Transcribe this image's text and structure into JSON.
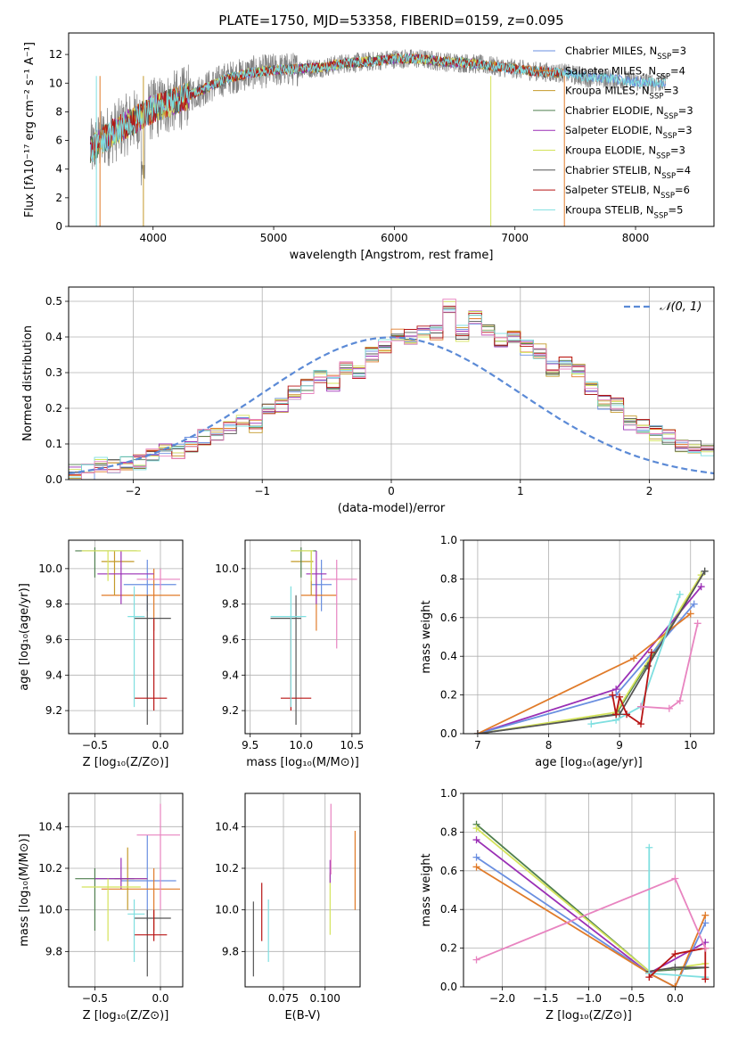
{
  "colors": {
    "chabrier_miles": "#6a8fe0",
    "salpeter_miles": "#e07b2a",
    "kroupa_miles": "#c49a2a",
    "chabrier_elodie": "#4f7f4f",
    "salpeter_elodie": "#9a2fb5",
    "kroupa_elodie": "#d4e35a",
    "chabrier_stelib": "#555555",
    "salpeter_stelib": "#b81414",
    "kroupa_stelib": "#7fdfe0",
    "pink": "#e884c0",
    "data": "#808080",
    "normal": "#5b8ad6",
    "grid": "#b0b0b0"
  },
  "chart_data": [
    {
      "type": "line",
      "title": "PLATE=1750, MJD=53358, FIBERID=0159, z=0.095",
      "xlabel": "wavelength [Angstrom, rest frame]",
      "ylabel": "Flux [fλ10⁻¹⁷ erg cm⁻² s⁻¹ A⁻¹]",
      "xlim": [
        3300,
        8650
      ],
      "ylim": [
        0,
        13.5
      ],
      "xticks": [
        4000,
        5000,
        6000,
        7000,
        8000
      ],
      "yticks": [
        0,
        2,
        4,
        6,
        8,
        10,
        12
      ],
      "grid": false,
      "legend_position": "right",
      "continuum": [
        [
          3480,
          5.3
        ],
        [
          3600,
          6.2
        ],
        [
          3800,
          7.2
        ],
        [
          4000,
          8.2
        ],
        [
          4200,
          8.8
        ],
        [
          4400,
          9.5
        ],
        [
          4600,
          10.3
        ],
        [
          4800,
          10.7
        ],
        [
          5000,
          10.9
        ],
        [
          5200,
          11.0
        ],
        [
          5400,
          11.1
        ],
        [
          5600,
          11.4
        ],
        [
          5800,
          11.5
        ],
        [
          6000,
          11.7
        ],
        [
          6200,
          11.7
        ],
        [
          6400,
          11.5
        ],
        [
          6600,
          11.4
        ],
        [
          6800,
          11.2
        ],
        [
          7000,
          11.0
        ],
        [
          7200,
          10.8
        ],
        [
          7400,
          10.7
        ],
        [
          7600,
          10.4
        ],
        [
          7800,
          10.3
        ],
        [
          8000,
          10.1
        ],
        [
          8250,
          10.0
        ]
      ],
      "series": [
        {
          "name": "Chabrier MILES, N_SSP=3",
          "label": "Chabrier MILES, N",
          "n": "=3",
          "xmax": 8250
        },
        {
          "name": "Salpeter MILES, N_SSP=4",
          "label": "Salpeter MILES, N",
          "n": "=4",
          "xmax": 7400
        },
        {
          "name": "Kroupa MILES, N_SSP=3",
          "label": "Kroupa MILES, N",
          "n": "=3",
          "xmax": 7400
        },
        {
          "name": "Chabrier ELODIE, N_SSP=3",
          "label": "Chabrier ELODIE, N",
          "n": "=3",
          "xmax": 6800
        },
        {
          "name": "Salpeter ELODIE, N_SSP=3",
          "label": "Salpeter ELODIE, N",
          "n": "=3",
          "xmax": 6800
        },
        {
          "name": "Kroupa ELODIE, N_SSP=3",
          "label": "Kroupa ELODIE, N",
          "n": "=3",
          "xmax": 6800
        },
        {
          "name": "Chabrier STELIB, N_SSP=4",
          "label": "Chabrier STELIB, N",
          "n": "=4",
          "xmax": 7400
        },
        {
          "name": "Salpeter STELIB, N_SSP=6",
          "label": "Salpeter STELIB, N",
          "n": "=6",
          "xmax": 7400
        },
        {
          "name": "Kroupa STELIB, N_SSP=5",
          "label": "Kroupa STELIB, N",
          "n": "=5",
          "xmax": 8250
        }
      ]
    },
    {
      "type": "line",
      "xlabel": "(data-model)/error",
      "ylabel": "Normed distribution",
      "xlim": [
        -2.5,
        2.5
      ],
      "ylim": [
        0,
        0.54
      ],
      "xticks": [
        -2,
        -1,
        0,
        1,
        2
      ],
      "yticks": [
        0.0,
        0.1,
        0.2,
        0.3,
        0.4,
        0.5
      ],
      "grid": true,
      "legend": "𝒩(0, 1)",
      "legend_position": "top-right",
      "hist_bin": [
        -2.5,
        0.1
      ],
      "hist_values": [
        0.02,
        0.02,
        0.04,
        0.04,
        0.05,
        0.05,
        0.07,
        0.08,
        0.08,
        0.1,
        0.12,
        0.13,
        0.15,
        0.16,
        0.15,
        0.2,
        0.21,
        0.24,
        0.26,
        0.29,
        0.27,
        0.31,
        0.3,
        0.35,
        0.37,
        0.41,
        0.4,
        0.42,
        0.41,
        0.49,
        0.41,
        0.45,
        0.42,
        0.39,
        0.4,
        0.37,
        0.36,
        0.31,
        0.33,
        0.31,
        0.26,
        0.22,
        0.21,
        0.16,
        0.15,
        0.13,
        0.12,
        0.1,
        0.09,
        0.08,
        0.06,
        0.06,
        0.05,
        0.04,
        0.04,
        0.03,
        0.03,
        0.03,
        0.02,
        0.02
      ]
    },
    {
      "type": "scatter",
      "xlabel": "Z [log₁₀(Z/Z⊙)]",
      "ylabel": "age  [log₁₀(age/yr)]",
      "xlim": [
        -0.7,
        0.17
      ],
      "ylim": [
        9.07,
        10.16
      ],
      "xticks": [
        -0.5,
        0.0
      ],
      "yticks": [
        9.2,
        9.4,
        9.6,
        9.8,
        10.0
      ],
      "points": [
        {
          "c": "chabrier_miles",
          "x": -0.1,
          "y": 9.91,
          "xe": [
            -0.28,
            0.12
          ],
          "ye": [
            9.76,
            10.05
          ]
        },
        {
          "c": "salpeter_miles",
          "x": -0.05,
          "y": 9.85,
          "xe": [
            -0.45,
            0.15
          ],
          "ye": [
            9.65,
            10.0
          ]
        },
        {
          "c": "kroupa_miles",
          "x": -0.35,
          "y": 10.04,
          "xe": [
            -0.45,
            -0.2
          ],
          "ye": [
            9.85,
            10.1
          ]
        },
        {
          "c": "chabrier_elodie",
          "x": -0.5,
          "y": 10.1,
          "xe": [
            -0.65,
            -0.18
          ],
          "ye": [
            9.95,
            10.12
          ]
        },
        {
          "c": "salpeter_elodie",
          "x": -0.3,
          "y": 9.97,
          "xe": [
            -0.48,
            -0.05
          ],
          "ye": [
            9.8,
            10.1
          ]
        },
        {
          "c": "kroupa_elodie",
          "x": -0.4,
          "y": 10.1,
          "xe": [
            -0.6,
            -0.15
          ],
          "ye": [
            9.93,
            10.1
          ]
        },
        {
          "c": "chabrier_stelib",
          "x": -0.1,
          "y": 9.72,
          "xe": [
            -0.2,
            0.08
          ],
          "ye": [
            9.12,
            9.85
          ]
        },
        {
          "c": "salpeter_stelib",
          "x": -0.05,
          "y": 9.27,
          "xe": [
            -0.2,
            0.05
          ],
          "ye": [
            9.2,
            9.72
          ]
        },
        {
          "c": "kroupa_stelib",
          "x": -0.2,
          "y": 9.73,
          "xe": [
            -0.25,
            -0.12
          ],
          "ye": [
            9.22,
            9.9
          ]
        },
        {
          "c": "pink",
          "x": 0.0,
          "y": 9.94,
          "xe": [
            -0.18,
            0.15
          ],
          "ye": [
            9.88,
            10.0
          ]
        }
      ]
    },
    {
      "type": "scatter",
      "xlabel": "mass [log₁₀(M/M⊙)]",
      "xlim": [
        9.45,
        10.58
      ],
      "ylim": [
        9.07,
        10.16
      ],
      "xticks": [
        9.5,
        10.0,
        10.5
      ],
      "yticks": [
        9.2,
        9.4,
        9.6,
        9.8,
        10.0
      ],
      "points": [
        {
          "c": "chabrier_miles",
          "x": 10.2,
          "y": 9.91,
          "xe": [
            10.1,
            10.3
          ],
          "ye": [
            9.76,
            10.05
          ]
        },
        {
          "c": "salpeter_miles",
          "x": 10.15,
          "y": 9.85,
          "xe": [
            10.0,
            10.35
          ],
          "ye": [
            9.65,
            10.0
          ]
        },
        {
          "c": "kroupa_miles",
          "x": 10.1,
          "y": 10.04,
          "xe": [
            9.9,
            10.12
          ],
          "ye": [
            9.85,
            10.1
          ]
        },
        {
          "c": "chabrier_elodie",
          "x": 10.0,
          "y": 10.1,
          "xe": [
            9.9,
            10.15
          ],
          "ye": [
            9.95,
            10.12
          ]
        },
        {
          "c": "salpeter_elodie",
          "x": 10.15,
          "y": 9.97,
          "xe": [
            10.05,
            10.25
          ],
          "ye": [
            9.8,
            10.1
          ]
        },
        {
          "c": "kroupa_elodie",
          "x": 10.1,
          "y": 10.1,
          "xe": [
            9.9,
            10.12
          ],
          "ye": [
            9.93,
            10.1
          ]
        },
        {
          "c": "chabrier_stelib",
          "x": 9.95,
          "y": 9.72,
          "xe": [
            9.7,
            10.0
          ],
          "ye": [
            9.12,
            9.85
          ]
        },
        {
          "c": "salpeter_stelib",
          "x": 9.9,
          "y": 9.27,
          "xe": [
            9.8,
            10.1
          ],
          "ye": [
            9.2,
            9.72
          ]
        },
        {
          "c": "kroupa_stelib",
          "x": 9.9,
          "y": 9.73,
          "xe": [
            9.7,
            10.05
          ],
          "ye": [
            9.22,
            9.9
          ]
        },
        {
          "c": "pink",
          "x": 10.35,
          "y": 9.94,
          "xe": [
            10.2,
            10.55
          ],
          "ye": [
            9.55,
            10.05
          ]
        }
      ]
    },
    {
      "type": "line",
      "xlabel": "age  [log₁₀(age/yr)]",
      "ylabel": "mass weight",
      "xlim": [
        6.8,
        10.33
      ],
      "ylim": [
        0,
        1.0
      ],
      "xticks": [
        7,
        8,
        9,
        10
      ],
      "yticks": [
        0.0,
        0.2,
        0.4,
        0.6,
        0.8,
        1.0
      ],
      "grid": true,
      "series": [
        {
          "c": "chabrier_elodie",
          "x": [
            7.0,
            8.95,
            10.2
          ],
          "y": [
            0.0,
            0.1,
            0.84
          ]
        },
        {
          "c": "kroupa_elodie",
          "x": [
            7.0,
            8.95,
            10.15
          ],
          "y": [
            0.0,
            0.11,
            0.82
          ]
        },
        {
          "c": "salpeter_elodie",
          "x": [
            7.0,
            8.95,
            10.15
          ],
          "y": [
            0.0,
            0.23,
            0.76
          ]
        },
        {
          "c": "chabrier_miles",
          "x": [
            7.0,
            8.95,
            10.05
          ],
          "y": [
            0.0,
            0.2,
            0.67
          ]
        },
        {
          "c": "salpeter_miles",
          "x": [
            7.0,
            9.2,
            10.0
          ],
          "y": [
            0.0,
            0.39,
            0.62
          ]
        },
        {
          "c": "chabrier_stelib",
          "x": [
            7.0,
            9.0,
            9.4,
            10.2
          ],
          "y": [
            0.0,
            0.1,
            0.35,
            0.84
          ]
        },
        {
          "c": "kroupa_stelib",
          "x": [
            8.6,
            8.95,
            9.3,
            9.85
          ],
          "y": [
            0.05,
            0.07,
            0.14,
            0.72
          ]
        },
        {
          "c": "salpeter_stelib",
          "x": [
            8.9,
            8.95,
            9.0,
            9.1,
            9.3,
            9.45
          ],
          "y": [
            0.2,
            0.1,
            0.19,
            0.1,
            0.05,
            0.42
          ]
        },
        {
          "c": "pink",
          "x": [
            9.3,
            9.7,
            9.85,
            10.1
          ],
          "y": [
            0.14,
            0.13,
            0.17,
            0.57
          ]
        }
      ]
    },
    {
      "type": "scatter",
      "xlabel": "Z [log₁₀(Z/Z⊙)]",
      "ylabel": "mass [log₁₀(M/M⊙)]",
      "xlim": [
        -0.7,
        0.17
      ],
      "ylim": [
        9.63,
        10.56
      ],
      "xticks": [
        -0.5,
        0.0
      ],
      "yticks": [
        9.8,
        10.0,
        10.2,
        10.4
      ],
      "points": [
        {
          "c": "chabrier_miles",
          "x": -0.1,
          "y": 10.14,
          "xe": [
            -0.3,
            0.12
          ],
          "ye": [
            9.95,
            10.36
          ]
        },
        {
          "c": "salpeter_miles",
          "x": -0.05,
          "y": 10.1,
          "xe": [
            -0.45,
            0.15
          ],
          "ye": [
            9.9,
            10.2
          ]
        },
        {
          "c": "kroupa_miles",
          "x": -0.25,
          "y": 10.15,
          "xe": [
            -0.35,
            -0.1
          ],
          "ye": [
            10.0,
            10.3
          ]
        },
        {
          "c": "chabrier_elodie",
          "x": -0.5,
          "y": 10.15,
          "xe": [
            -0.65,
            -0.2
          ],
          "ye": [
            9.9,
            10.2
          ]
        },
        {
          "c": "salpeter_elodie",
          "x": -0.3,
          "y": 10.15,
          "xe": [
            -0.5,
            -0.1
          ],
          "ye": [
            10.1,
            10.25
          ]
        },
        {
          "c": "kroupa_elodie",
          "x": -0.4,
          "y": 10.11,
          "xe": [
            -0.6,
            -0.15
          ],
          "ye": [
            9.85,
            10.15
          ]
        },
        {
          "c": "chabrier_stelib",
          "x": -0.1,
          "y": 9.96,
          "xe": [
            -0.2,
            0.08
          ],
          "ye": [
            9.68,
            10.0
          ]
        },
        {
          "c": "salpeter_stelib",
          "x": -0.05,
          "y": 9.88,
          "xe": [
            -0.2,
            0.05
          ],
          "ye": [
            9.85,
            10.0
          ]
        },
        {
          "c": "kroupa_stelib",
          "x": -0.2,
          "y": 9.98,
          "xe": [
            -0.25,
            -0.12
          ],
          "ye": [
            9.75,
            10.05
          ]
        },
        {
          "c": "pink",
          "x": 0.0,
          "y": 10.36,
          "xe": [
            -0.18,
            0.15
          ],
          "ye": [
            10.0,
            10.51
          ]
        }
      ]
    },
    {
      "type": "scatter",
      "xlabel": "E(B-V)",
      "xlim": [
        0.052,
        0.121
      ],
      "ylim": [
        9.63,
        10.56
      ],
      "xticks": [
        0.075,
        0.1
      ],
      "yticks": [
        9.8,
        10.0,
        10.2,
        10.4
      ],
      "points": [
        {
          "c": "chabrier_stelib",
          "x": 0.057,
          "ye": [
            9.68,
            10.04
          ]
        },
        {
          "c": "salpeter_stelib",
          "x": 0.062,
          "ye": [
            9.85,
            10.13
          ]
        },
        {
          "c": "kroupa_stelib",
          "x": 0.066,
          "ye": [
            9.75,
            10.05
          ]
        },
        {
          "c": "kroupa_elodie",
          "x": 0.103,
          "ye": [
            9.88,
            10.18
          ]
        },
        {
          "c": "salpeter_elodie",
          "x": 0.103,
          "ye": [
            10.13,
            10.24
          ]
        },
        {
          "c": "pink",
          "x": 0.1035,
          "ye": [
            10.17,
            10.51
          ]
        },
        {
          "c": "salpeter_miles",
          "x": 0.118,
          "ye": [
            10.0,
            10.38
          ]
        }
      ]
    },
    {
      "type": "line",
      "xlabel": "Z [log₁₀(Z/Z⊙)]",
      "ylabel": "mass weight",
      "xlim": [
        -2.45,
        0.45
      ],
      "ylim": [
        0,
        1.0
      ],
      "xticks": [
        -2.0,
        -1.5,
        -1.0,
        -0.5,
        0.0
      ],
      "yticks": [
        0.0,
        0.2,
        0.4,
        0.6,
        0.8,
        1.0
      ],
      "grid": true,
      "series": [
        {
          "c": "chabrier_elodie",
          "x": [
            -2.3,
            -0.3,
            0.35
          ],
          "y": [
            0.84,
            0.08,
            0.1
          ]
        },
        {
          "c": "kroupa_elodie",
          "x": [
            -2.3,
            -0.3,
            0.35
          ],
          "y": [
            0.82,
            0.08,
            0.12
          ]
        },
        {
          "c": "salpeter_elodie",
          "x": [
            -2.3,
            -0.3,
            0.35
          ],
          "y": [
            0.76,
            0.07,
            0.23
          ]
        },
        {
          "c": "chabrier_miles",
          "x": [
            -2.3,
            -0.3,
            0.0,
            0.35
          ],
          "y": [
            0.67,
            0.07,
            0.0,
            0.33
          ]
        },
        {
          "c": "salpeter_miles",
          "x": [
            -2.3,
            -0.3,
            0.0,
            0.35
          ],
          "y": [
            0.62,
            0.07,
            0.0,
            0.37
          ]
        },
        {
          "c": "chabrier_stelib",
          "x": [
            -0.3,
            0.0,
            0.35
          ],
          "y": [
            0.08,
            0.1,
            0.1
          ]
        },
        {
          "c": "kroupa_stelib",
          "x": [
            -0.3,
            -0.3,
            0.35
          ],
          "y": [
            0.72,
            0.07,
            0.05
          ]
        },
        {
          "c": "salpeter_stelib",
          "x": [
            -0.3,
            0.0,
            0.35,
            0.35
          ],
          "y": [
            0.05,
            0.17,
            0.2,
            0.04
          ]
        },
        {
          "c": "pink",
          "x": [
            -2.3,
            0.0,
            0.35
          ],
          "y": [
            0.14,
            0.56,
            0.2
          ]
        }
      ]
    }
  ]
}
